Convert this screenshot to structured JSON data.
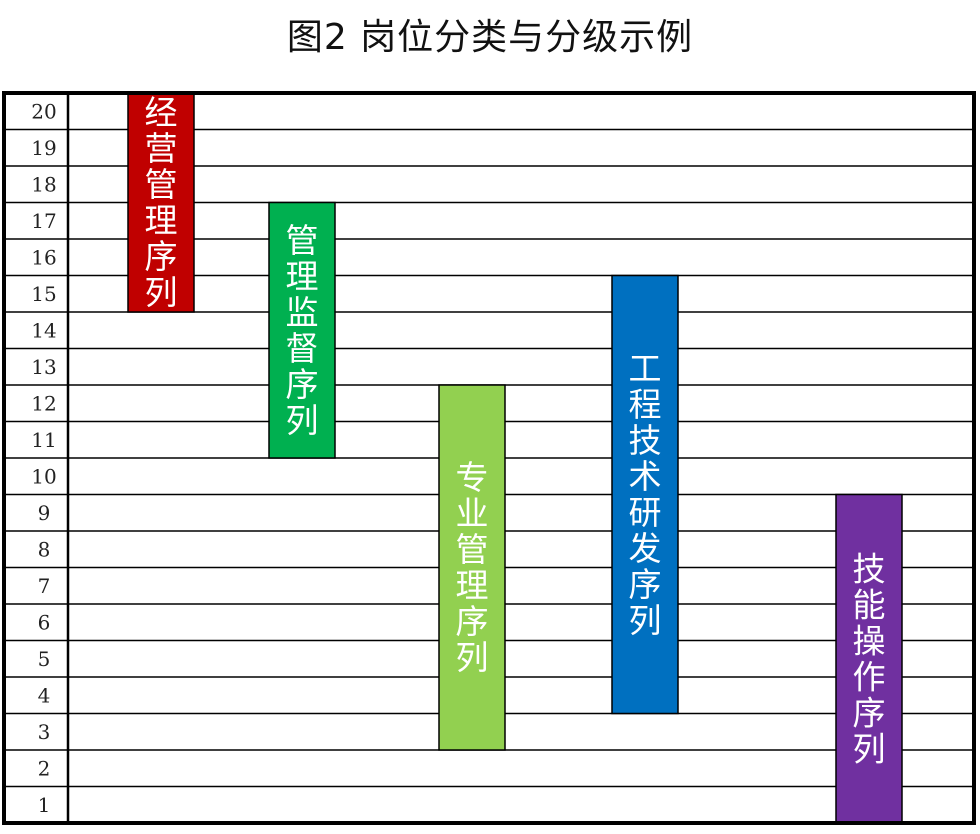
{
  "title": "图2  岗位分类与分级示例",
  "chart_data": {
    "type": "bar",
    "orientation": "floating-vertical",
    "y_ticks": [
      "1",
      "2",
      "3",
      "4",
      "5",
      "6",
      "7",
      "8",
      "9",
      "10",
      "11",
      "12",
      "13",
      "14",
      "15",
      "16",
      "17",
      "18",
      "19",
      "20"
    ],
    "ylim": [
      1,
      20
    ],
    "grid": true,
    "bars": [
      {
        "label": "经营管理序列",
        "low": 15,
        "high": 20,
        "color": "#c00000"
      },
      {
        "label": "管理监督序列",
        "low": 11,
        "high": 17,
        "color": "#00b050"
      },
      {
        "label": "专业管理序列",
        "low": 3,
        "high": 12,
        "color": "#92d050"
      },
      {
        "label": "工程技术研发序列",
        "low": 4,
        "high": 15,
        "color": "#0070c0"
      },
      {
        "label": "技能操作序列",
        "low": 1,
        "high": 9,
        "color": "#7030a0"
      }
    ]
  }
}
